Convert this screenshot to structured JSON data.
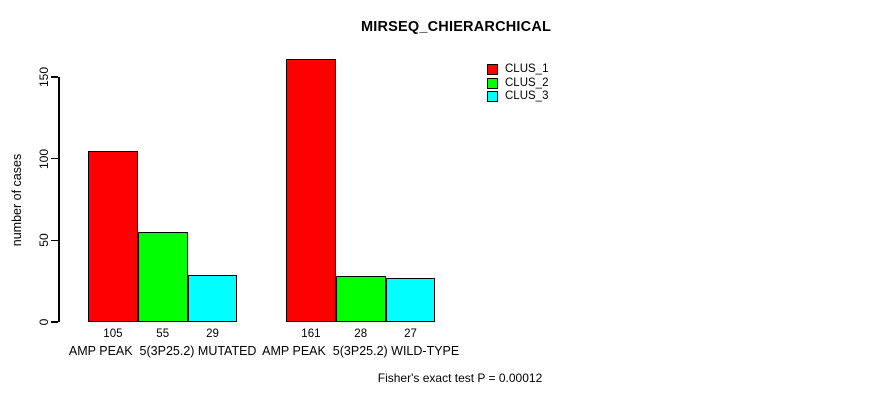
{
  "chart_data": {
    "type": "bar",
    "title": "MIRSEQ_CHIERARCHICAL",
    "ylabel": "number of cases",
    "xlabel": "",
    "ylim": [
      0,
      150
    ],
    "yticks": [
      0,
      50,
      100,
      150
    ],
    "grid": false,
    "legend_position": "top-right",
    "categories": [
      "AMP PEAK  5(3P25.2) MUTATED",
      "AMP PEAK  5(3P25.2) WILD-TYPE"
    ],
    "series": [
      {
        "name": "CLUS_1",
        "color": "#ff0000",
        "values": [
          105,
          161
        ]
      },
      {
        "name": "CLUS_2",
        "color": "#00ff00",
        "values": [
          55,
          28
        ]
      },
      {
        "name": "CLUS_3",
        "color": "#00ffff",
        "values": [
          29,
          27
        ]
      }
    ],
    "bar_value_labels": [
      [
        105,
        55,
        29
      ],
      [
        161,
        28,
        27
      ]
    ],
    "annotation": "Fisher's exact test P = 0.00012"
  }
}
